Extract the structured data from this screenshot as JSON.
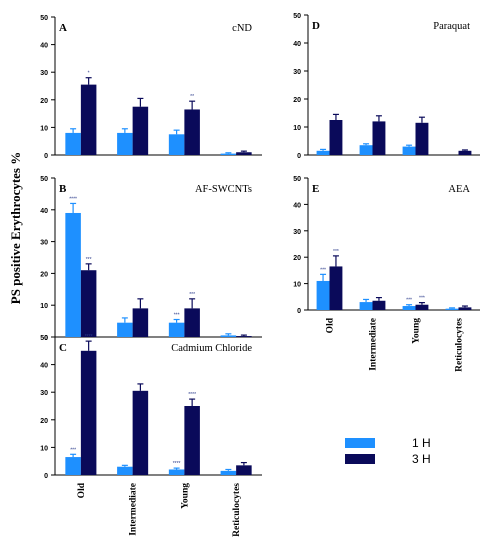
{
  "figure": {
    "ylabel": "PS positive Erythrocytes %",
    "colors": {
      "h1": "#1e90ff",
      "h3": "#0a0a5a",
      "axis": "#000000",
      "sig": "#2a3a8a"
    }
  },
  "legend": {
    "entries": [
      {
        "name": "1 H",
        "color": "#1e90ff"
      },
      {
        "name": "3 H",
        "color": "#0a0a5a"
      }
    ]
  },
  "chart_data": [
    {
      "type": "bar",
      "letter": "A",
      "title": "cND",
      "categories": [
        "Old",
        "Intermediate",
        "Young",
        "Reticulocytes"
      ],
      "ylim": [
        0,
        50
      ],
      "yticks": [
        0,
        10,
        20,
        30,
        40,
        50
      ],
      "series": [
        {
          "name": "1 H",
          "values": [
            8,
            8,
            7.5,
            0.5
          ],
          "errors": [
            1.5,
            1.5,
            1.5,
            0.3
          ],
          "sig": [
            "",
            "",
            "",
            ""
          ]
        },
        {
          "name": "3 H",
          "values": [
            25.5,
            17.5,
            16.5,
            1
          ],
          "errors": [
            2.5,
            3,
            3,
            0.4
          ],
          "sig": [
            "*",
            "",
            "**",
            ""
          ]
        }
      ]
    },
    {
      "type": "bar",
      "letter": "B",
      "title": "AF-SWCNTs",
      "categories": [
        "Old",
        "Intermediate",
        "Young",
        "Reticulocytes"
      ],
      "ylim": [
        0,
        50
      ],
      "yticks": [
        0,
        10,
        20,
        30,
        40,
        50
      ],
      "series": [
        {
          "name": "1 H",
          "values": [
            39,
            4.5,
            4.5,
            0.5
          ],
          "errors": [
            3,
            1.5,
            1,
            0.5
          ],
          "sig": [
            "****",
            "",
            "***",
            ""
          ]
        },
        {
          "name": "3 H",
          "values": [
            21,
            9,
            9,
            0.3
          ],
          "errors": [
            2,
            3,
            3,
            0.3
          ],
          "sig": [
            "***",
            "",
            "***",
            ""
          ]
        }
      ]
    },
    {
      "type": "bar",
      "letter": "C",
      "title": "Cadmium Chloride",
      "categories": [
        "Old",
        "Intermediate",
        "Young",
        "Reticulocytes"
      ],
      "ylim": [
        0,
        50
      ],
      "yticks": [
        0,
        10,
        20,
        30,
        40,
        50
      ],
      "series": [
        {
          "name": "1 H",
          "values": [
            6.5,
            3,
            2,
            1.5
          ],
          "errors": [
            1,
            0.5,
            0.5,
            0.5
          ],
          "sig": [
            "***",
            "",
            "****",
            ""
          ]
        },
        {
          "name": "3 H",
          "values": [
            45,
            30.5,
            25,
            3.5
          ],
          "errors": [
            3.5,
            2.5,
            2.5,
            1
          ],
          "sig": [
            "****",
            "",
            "****",
            ""
          ]
        }
      ]
    },
    {
      "type": "bar",
      "letter": "D",
      "title": "Paraquat",
      "categories": [
        "Old",
        "Intermediate",
        "Young",
        "Reticulocytes"
      ],
      "ylim": [
        0,
        50
      ],
      "yticks": [
        0,
        10,
        20,
        30,
        40,
        50
      ],
      "series": [
        {
          "name": "1 H",
          "values": [
            1.5,
            3.5,
            3,
            0
          ],
          "errors": [
            0.5,
            0.5,
            0.5,
            0
          ],
          "sig": [
            "",
            "",
            "",
            ""
          ]
        },
        {
          "name": "3 H",
          "values": [
            12.5,
            12,
            11.5,
            1.5
          ],
          "errors": [
            2,
            2,
            2,
            0.3
          ],
          "sig": [
            "",
            "",
            "",
            ""
          ]
        }
      ]
    },
    {
      "type": "bar",
      "letter": "E",
      "title": "AEA",
      "categories": [
        "Old",
        "Intermediate",
        "Young",
        "Reticulocytes"
      ],
      "ylim": [
        0,
        50
      ],
      "yticks": [
        0,
        10,
        20,
        30,
        40,
        50
      ],
      "series": [
        {
          "name": "1 H",
          "values": [
            11,
            3,
            1.5,
            0.5
          ],
          "errors": [
            2.5,
            1,
            0.5,
            0.3
          ],
          "sig": [
            "***",
            "",
            "***",
            ""
          ]
        },
        {
          "name": "3 H",
          "values": [
            16.5,
            3.5,
            2,
            1
          ],
          "errors": [
            4,
            1.2,
            0.8,
            0.5
          ],
          "sig": [
            "***",
            "",
            "***",
            ""
          ]
        }
      ]
    }
  ]
}
